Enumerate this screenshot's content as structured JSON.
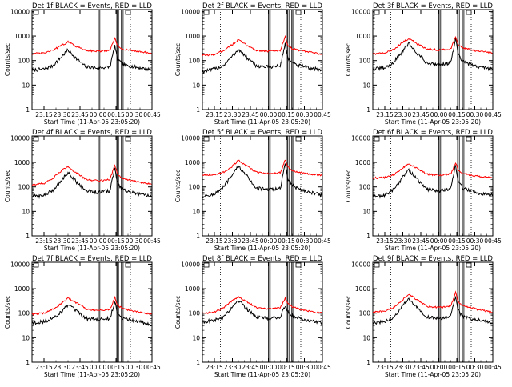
{
  "chart_data": [
    {
      "type": "line",
      "title": "Det 1f BLACK = Events, RED = LLD",
      "xlabel": "Start Time (11-Apr-05 23:05:20)",
      "ylabel": "Counts/sec",
      "x_ticks": [
        "23:15",
        "23:30",
        "23:45",
        "00:00",
        "00:15",
        "00:30",
        "00:45"
      ],
      "y_ticks": [
        "1",
        "10",
        "100",
        "1000",
        "10000"
      ],
      "y_scale": "log",
      "ylim": [
        1,
        12000
      ],
      "series": [
        {
          "color": "#000000",
          "x": [
            "23:05",
            "23:15",
            "23:22",
            "23:30",
            "23:35",
            "23:42",
            "23:50",
            "00:00",
            "00:10",
            "00:14",
            "00:16",
            "00:20",
            "00:30",
            "00:45"
          ],
          "y": [
            40,
            45,
            60,
            150,
            270,
            120,
            55,
            50,
            55,
            400,
            120,
            70,
            55,
            42
          ]
        },
        {
          "color": "#ff0000",
          "x": [
            "23:05",
            "23:15",
            "23:22",
            "23:30",
            "23:35",
            "23:42",
            "23:50",
            "00:00",
            "00:10",
            "00:14",
            "00:16",
            "00:20",
            "00:30",
            "00:45"
          ],
          "y": [
            190,
            200,
            260,
            420,
            580,
            380,
            260,
            240,
            260,
            850,
            400,
            300,
            250,
            200
          ]
        }
      ]
    },
    {
      "type": "line",
      "title": "Det 2f BLACK = Events, RED = LLD",
      "xlabel": "Start Time (11-Apr-05 23:05:20)",
      "ylabel": "Counts/sec",
      "x_ticks": [
        "23:15",
        "23:30",
        "23:45",
        "00:00",
        "00:15",
        "00:30",
        "00:45"
      ],
      "y_ticks": [
        "1",
        "10",
        "100",
        "1000",
        "10000"
      ],
      "y_scale": "log",
      "ylim": [
        1,
        12000
      ],
      "series": [
        {
          "color": "#000000",
          "x": [
            "23:05",
            "23:15",
            "23:22",
            "23:30",
            "23:35",
            "23:42",
            "23:50",
            "00:00",
            "00:10",
            "00:14",
            "00:16",
            "00:20",
            "00:30",
            "00:45"
          ],
          "y": [
            35,
            45,
            60,
            150,
            290,
            130,
            60,
            55,
            60,
            500,
            130,
            75,
            55,
            40
          ]
        },
        {
          "color": "#ff0000",
          "x": [
            "23:05",
            "23:15",
            "23:22",
            "23:30",
            "23:35",
            "23:42",
            "23:50",
            "00:00",
            "00:10",
            "00:14",
            "00:16",
            "00:20",
            "00:30",
            "00:45"
          ],
          "y": [
            160,
            180,
            250,
            450,
            700,
            420,
            260,
            240,
            260,
            1000,
            420,
            300,
            240,
            180
          ]
        }
      ]
    },
    {
      "type": "line",
      "title": "Det 3f BLACK = Events, RED = LLD",
      "xlabel": "Start Time (11-Apr-05 23:05:20)",
      "ylabel": "Counts/sec",
      "x_ticks": [
        "23:15",
        "23:30",
        "23:45",
        "00:00",
        "00:15",
        "00:30",
        "00:45"
      ],
      "y_ticks": [
        "1",
        "10",
        "100",
        "1000",
        "10000"
      ],
      "y_scale": "log",
      "ylim": [
        1,
        12000
      ],
      "series": [
        {
          "color": "#000000",
          "x": [
            "23:05",
            "23:15",
            "23:22",
            "23:30",
            "23:35",
            "23:42",
            "23:50",
            "00:00",
            "00:10",
            "00:14",
            "00:16",
            "00:20",
            "00:30",
            "00:45"
          ],
          "y": [
            45,
            50,
            80,
            250,
            500,
            200,
            80,
            70,
            80,
            800,
            180,
            90,
            60,
            45
          ]
        },
        {
          "color": "#ff0000",
          "x": [
            "23:05",
            "23:15",
            "23:22",
            "23:30",
            "23:35",
            "23:42",
            "23:50",
            "00:00",
            "00:10",
            "00:14",
            "00:16",
            "00:20",
            "00:30",
            "00:45"
          ],
          "y": [
            190,
            200,
            280,
            550,
            800,
            480,
            300,
            270,
            300,
            950,
            450,
            320,
            260,
            200
          ]
        }
      ]
    },
    {
      "type": "line",
      "title": "Det 4f BLACK = Events, RED = LLD",
      "xlabel": "Start Time (11-Apr-05 23:05:20)",
      "ylabel": "Counts/sec",
      "x_ticks": [
        "23:15",
        "23:30",
        "23:45",
        "00:00",
        "00:15",
        "00:30",
        "00:45"
      ],
      "y_ticks": [
        "1",
        "10",
        "100",
        "1000",
        "10000"
      ],
      "y_scale": "log",
      "ylim": [
        1,
        12000
      ],
      "series": [
        {
          "color": "#000000",
          "x": [
            "23:05",
            "23:15",
            "23:22",
            "23:30",
            "23:35",
            "23:42",
            "23:50",
            "00:00",
            "00:10",
            "00:14",
            "00:16",
            "00:20",
            "00:30",
            "00:45"
          ],
          "y": [
            40,
            45,
            70,
            200,
            400,
            160,
            70,
            60,
            70,
            600,
            150,
            80,
            55,
            40
          ]
        },
        {
          "color": "#ff0000",
          "x": [
            "23:05",
            "23:15",
            "23:22",
            "23:30",
            "23:35",
            "23:42",
            "23:50",
            "00:00",
            "00:10",
            "00:14",
            "00:16",
            "00:20",
            "00:30",
            "00:45"
          ],
          "y": [
            120,
            140,
            220,
            480,
            650,
            380,
            200,
            180,
            200,
            800,
            350,
            220,
            170,
            130
          ]
        }
      ]
    },
    {
      "type": "line",
      "title": "Det 5f BLACK = Events, RED = LLD",
      "xlabel": "Start Time (11-Apr-05 23:05:20)",
      "ylabel": "Counts/sec",
      "x_ticks": [
        "23:15",
        "23:30",
        "23:45",
        "00:00",
        "00:15",
        "00:30",
        "00:45"
      ],
      "y_ticks": [
        "1",
        "10",
        "100",
        "1000",
        "10000"
      ],
      "y_scale": "log",
      "ylim": [
        1,
        12000
      ],
      "series": [
        {
          "color": "#000000",
          "x": [
            "23:05",
            "23:15",
            "23:22",
            "23:30",
            "23:35",
            "23:42",
            "23:50",
            "00:00",
            "00:10",
            "00:14",
            "00:16",
            "00:20",
            "00:30",
            "00:45"
          ],
          "y": [
            40,
            50,
            90,
            300,
            700,
            280,
            90,
            75,
            90,
            900,
            220,
            110,
            70,
            45
          ]
        },
        {
          "color": "#ff0000",
          "x": [
            "23:05",
            "23:15",
            "23:22",
            "23:30",
            "23:35",
            "23:42",
            "23:50",
            "00:00",
            "00:10",
            "00:14",
            "00:16",
            "00:20",
            "00:30",
            "00:45"
          ],
          "y": [
            310,
            320,
            380,
            700,
            1200,
            700,
            400,
            350,
            380,
            1300,
            650,
            450,
            350,
            300
          ]
        }
      ]
    },
    {
      "type": "line",
      "title": "Det 6f BLACK = Events, RED = LLD",
      "xlabel": "Start Time (11-Apr-05 23:05:20)",
      "ylabel": "Counts/sec",
      "x_ticks": [
        "23:15",
        "23:30",
        "23:45",
        "00:00",
        "00:15",
        "00:30",
        "00:45"
      ],
      "y_ticks": [
        "1",
        "10",
        "100",
        "1000",
        "10000"
      ],
      "y_scale": "log",
      "ylim": [
        1,
        12000
      ],
      "series": [
        {
          "color": "#000000",
          "x": [
            "23:05",
            "23:15",
            "23:22",
            "23:30",
            "23:35",
            "23:42",
            "23:50",
            "00:00",
            "00:10",
            "00:14",
            "00:16",
            "00:20",
            "00:30",
            "00:45"
          ],
          "y": [
            40,
            45,
            75,
            250,
            500,
            200,
            80,
            70,
            80,
            800,
            180,
            90,
            60,
            45
          ]
        },
        {
          "color": "#ff0000",
          "x": [
            "23:05",
            "23:15",
            "23:22",
            "23:30",
            "23:35",
            "23:42",
            "23:50",
            "00:00",
            "00:10",
            "00:14",
            "00:16",
            "00:20",
            "00:30",
            "00:45"
          ],
          "y": [
            230,
            240,
            300,
            600,
            900,
            550,
            330,
            300,
            330,
            1000,
            500,
            350,
            280,
            230
          ]
        }
      ]
    },
    {
      "type": "line",
      "title": "Det 7f BLACK = Events, RED = LLD",
      "xlabel": "Start Time (11-Apr-05 23:05:20)",
      "ylabel": "Counts/sec",
      "x_ticks": [
        "23:15",
        "23:30",
        "23:45",
        "00:00",
        "00:15",
        "00:30",
        "00:45"
      ],
      "y_ticks": [
        "1",
        "10",
        "100",
        "1000",
        "10000"
      ],
      "y_scale": "log",
      "ylim": [
        1,
        12000
      ],
      "series": [
        {
          "color": "#000000",
          "x": [
            "23:05",
            "23:15",
            "23:22",
            "23:30",
            "23:35",
            "23:42",
            "23:50",
            "00:00",
            "00:10",
            "00:14",
            "00:16",
            "00:20",
            "00:30",
            "00:45"
          ],
          "y": [
            40,
            45,
            60,
            120,
            220,
            120,
            60,
            55,
            60,
            300,
            100,
            65,
            50,
            35
          ]
        },
        {
          "color": "#ff0000",
          "x": [
            "23:05",
            "23:15",
            "23:22",
            "23:30",
            "23:35",
            "23:42",
            "23:50",
            "00:00",
            "00:10",
            "00:14",
            "00:16",
            "00:20",
            "00:30",
            "00:45"
          ],
          "y": [
            90,
            100,
            140,
            260,
            420,
            260,
            150,
            130,
            140,
            450,
            220,
            160,
            120,
            90
          ]
        }
      ]
    },
    {
      "type": "line",
      "title": "Det 8f BLACK = Events, RED = LLD",
      "xlabel": "Start Time (11-Apr-05 23:05:20)",
      "ylabel": "Counts/sec",
      "x_ticks": [
        "23:15",
        "23:30",
        "23:45",
        "00:00",
        "00:15",
        "00:30",
        "00:45"
      ],
      "y_ticks": [
        "1",
        "10",
        "100",
        "1000",
        "10000"
      ],
      "y_scale": "log",
      "ylim": [
        1,
        12000
      ],
      "series": [
        {
          "color": "#000000",
          "x": [
            "23:05",
            "23:15",
            "23:22",
            "23:30",
            "23:35",
            "23:42",
            "23:50",
            "00:00",
            "00:10",
            "00:14",
            "00:16",
            "00:20",
            "00:30",
            "00:45"
          ],
          "y": [
            45,
            50,
            70,
            180,
            350,
            150,
            70,
            60,
            70,
            200,
            120,
            80,
            55,
            40
          ]
        },
        {
          "color": "#ff0000",
          "x": [
            "23:05",
            "23:15",
            "23:22",
            "23:30",
            "23:35",
            "23:42",
            "23:50",
            "00:00",
            "00:10",
            "00:14",
            "00:16",
            "00:20",
            "00:30",
            "00:45"
          ],
          "y": [
            100,
            110,
            160,
            320,
            480,
            300,
            170,
            150,
            170,
            400,
            260,
            180,
            130,
            100
          ]
        }
      ]
    },
    {
      "type": "line",
      "title": "Det 9f BLACK = Events, RED = LLD",
      "xlabel": "Start Time (11-Apr-05 23:05:20)",
      "ylabel": "Counts/sec",
      "x_ticks": [
        "23:15",
        "23:30",
        "23:45",
        "00:00",
        "00:15",
        "00:30",
        "00:45"
      ],
      "y_ticks": [
        "1",
        "10",
        "100",
        "1000",
        "10000"
      ],
      "y_scale": "log",
      "ylim": [
        1,
        12000
      ],
      "series": [
        {
          "color": "#000000",
          "x": [
            "23:05",
            "23:15",
            "23:22",
            "23:30",
            "23:35",
            "23:42",
            "23:50",
            "00:00",
            "00:10",
            "00:14",
            "00:16",
            "00:20",
            "00:30",
            "00:45"
          ],
          "y": [
            40,
            45,
            65,
            200,
            380,
            170,
            70,
            60,
            70,
            500,
            130,
            75,
            55,
            40
          ]
        },
        {
          "color": "#ff0000",
          "x": [
            "23:05",
            "23:15",
            "23:22",
            "23:30",
            "23:35",
            "23:42",
            "23:50",
            "00:00",
            "00:10",
            "00:14",
            "00:16",
            "00:20",
            "00:30",
            "00:45"
          ],
          "y": [
            110,
            120,
            170,
            360,
            600,
            350,
            190,
            170,
            190,
            700,
            300,
            200,
            150,
            110
          ]
        }
      ]
    }
  ]
}
